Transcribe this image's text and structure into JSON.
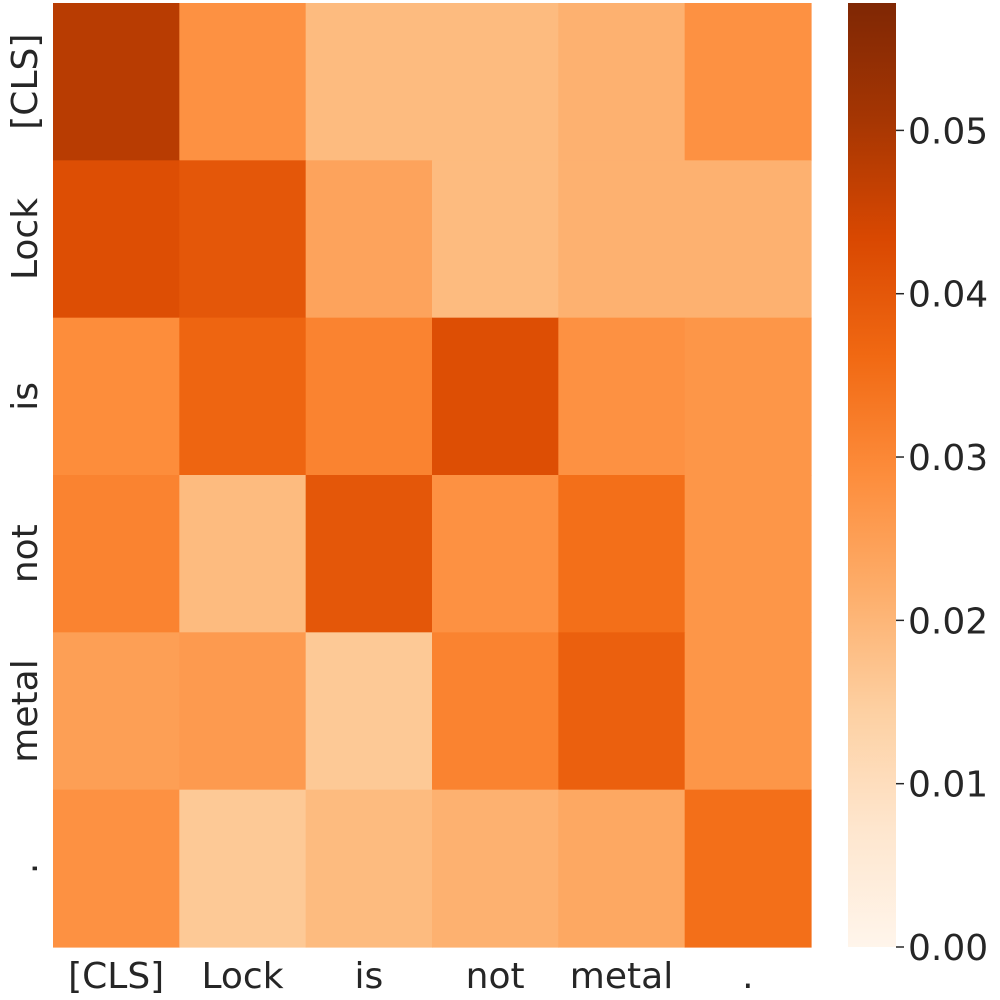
{
  "chart_data": {
    "type": "heatmap",
    "title": "",
    "xlabel": "",
    "ylabel": "",
    "x_labels": [
      "[CLS]",
      "Lock",
      "is",
      "not",
      "metal",
      "."
    ],
    "y_labels": [
      "[CLS]",
      "Lock",
      "is",
      "not",
      "metal",
      "."
    ],
    "values": [
      [
        0.048,
        0.028,
        0.019,
        0.019,
        0.021,
        0.028
      ],
      [
        0.042,
        0.04,
        0.024,
        0.019,
        0.021,
        0.021
      ],
      [
        0.029,
        0.037,
        0.031,
        0.042,
        0.028,
        0.027
      ],
      [
        0.031,
        0.019,
        0.04,
        0.028,
        0.035,
        0.027
      ],
      [
        0.025,
        0.026,
        0.016,
        0.031,
        0.038,
        0.027
      ],
      [
        0.028,
        0.016,
        0.019,
        0.021,
        0.023,
        0.035
      ]
    ],
    "colorbar": {
      "range": [
        0.0,
        0.0578
      ],
      "ticks": [
        "0.00",
        "0.01",
        "0.02",
        "0.03",
        "0.04",
        "0.05"
      ],
      "colormap": "Oranges",
      "colors": [
        "#fff5eb",
        "#fee6ce",
        "#fdd0a2",
        "#fdae6b",
        "#fd8d3c",
        "#f16913",
        "#d94801",
        "#a63603",
        "#7f2704"
      ]
    },
    "grid": false,
    "legend": "colorbar-right"
  }
}
